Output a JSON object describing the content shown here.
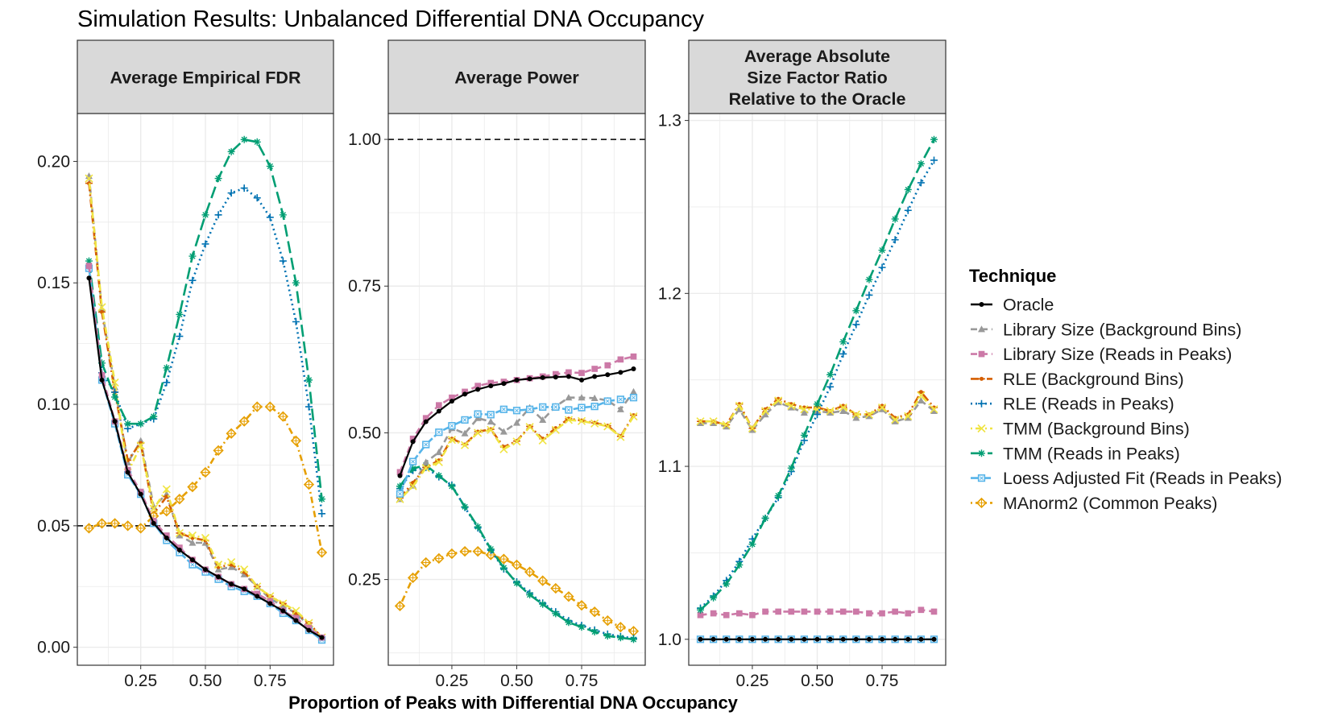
{
  "title": "Simulation Results: Unbalanced Differential DNA Occupancy",
  "legend": {
    "title": "Technique",
    "placement": "right",
    "items": [
      {
        "name": "Oracle",
        "color": "#000000",
        "linetype": "solid",
        "shape": "dot"
      },
      {
        "name": "Library Size (Background Bins)",
        "color": "#999999",
        "linetype": "dashed",
        "shape": "triangle"
      },
      {
        "name": "Library Size (Reads in Peaks)",
        "color": "#CC79A7",
        "linetype": "dashed",
        "shape": "square"
      },
      {
        "name": "RLE (Background Bins)",
        "color": "#D55E00",
        "linetype": "longdash-dot",
        "shape": "arrow"
      },
      {
        "name": "RLE (Reads in Peaks)",
        "color": "#0072B2",
        "linetype": "dotted",
        "shape": "plus"
      },
      {
        "name": "TMM (Background Bins)",
        "color": "#F0E442",
        "linetype": "dotdash",
        "shape": "cross"
      },
      {
        "name": "TMM (Reads in Peaks)",
        "color": "#009E73",
        "linetype": "longdash",
        "shape": "asterisk"
      },
      {
        "name": "Loess Adjusted Fit (Reads in Peaks)",
        "color": "#56B4E9",
        "linetype": "dashed-long",
        "shape": "square-cross"
      },
      {
        "name": "MAnorm2 (Common Peaks)",
        "color": "#E69F00",
        "linetype": "dotdash",
        "shape": "diamond-plus"
      }
    ]
  },
  "xlabel": "Proportion of Peaks with Differential DNA Occupancy",
  "chart_data": [
    {
      "type": "line",
      "title": [
        "Average Empirical FDR"
      ],
      "x": [
        0.05,
        0.1,
        0.15,
        0.2,
        0.25,
        0.3,
        0.35,
        0.4,
        0.45,
        0.5,
        0.55,
        0.6,
        0.65,
        0.7,
        0.75,
        0.8,
        0.85,
        0.9,
        0.95
      ],
      "xlim": [
        0.005,
        0.995
      ],
      "xticks": [
        0.25,
        0.5,
        0.75
      ],
      "xtick_labels": [
        "0.25",
        "0.50",
        "0.75"
      ],
      "ylim": [
        -0.0074,
        0.2197
      ],
      "yticks": [
        0.0,
        0.05,
        0.1,
        0.15,
        0.2
      ],
      "ytick_labels": [
        "0.00",
        "0.05",
        "0.10",
        "0.15",
        "0.20"
      ],
      "grid": true,
      "reference_line": 0.05,
      "series": [
        {
          "name": "Library Size (Background Bins)",
          "values": [
            0.194,
            0.139,
            0.107,
            0.076,
            0.085,
            0.058,
            0.063,
            0.046,
            0.043,
            0.043,
            0.032,
            0.033,
            0.03,
            0.025,
            0.02,
            0.017,
            0.014,
            0.009,
            0.004
          ]
        },
        {
          "name": "RLE (Background Bins)",
          "values": [
            0.191,
            0.138,
            0.105,
            0.077,
            0.084,
            0.055,
            0.062,
            0.047,
            0.045,
            0.044,
            0.033,
            0.034,
            0.031,
            0.025,
            0.021,
            0.018,
            0.014,
            0.01,
            0.004
          ]
        },
        {
          "name": "TMM (Background Bins)",
          "values": [
            0.193,
            0.14,
            0.109,
            0.072,
            0.083,
            0.057,
            0.065,
            0.047,
            0.046,
            0.045,
            0.034,
            0.035,
            0.032,
            0.025,
            0.021,
            0.018,
            0.015,
            0.01,
            0.004
          ]
        },
        {
          "name": "MAnorm2 (Common Peaks)",
          "values": [
            0.049,
            0.051,
            0.051,
            0.05,
            0.049,
            0.054,
            0.056,
            0.061,
            0.066,
            0.072,
            0.081,
            0.088,
            0.093,
            0.099,
            0.099,
            0.095,
            0.085,
            0.067,
            0.039
          ]
        },
        {
          "name": "RLE (Reads in Peaks)",
          "values": [
            0.157,
            0.113,
            0.105,
            0.09,
            0.092,
            0.094,
            0.109,
            0.128,
            0.151,
            0.166,
            0.178,
            0.187,
            0.189,
            0.185,
            0.177,
            0.159,
            0.134,
            0.099,
            0.055
          ]
        },
        {
          "name": "TMM (Reads in Peaks)",
          "values": [
            0.159,
            0.117,
            0.103,
            0.092,
            0.092,
            0.095,
            0.115,
            0.137,
            0.161,
            0.178,
            0.193,
            0.204,
            0.209,
            0.208,
            0.198,
            0.178,
            0.15,
            0.11,
            0.061
          ]
        },
        {
          "name": "Loess Adjusted Fit (Reads in Peaks)",
          "values": [
            0.156,
            0.11,
            0.092,
            0.071,
            0.063,
            0.051,
            0.044,
            0.039,
            0.034,
            0.031,
            0.028,
            0.025,
            0.023,
            0.021,
            0.018,
            0.014,
            0.011,
            0.007,
            0.003
          ]
        },
        {
          "name": "Library Size (Reads in Peaks)",
          "values": [
            0.157,
            0.112,
            0.093,
            0.073,
            0.064,
            0.052,
            0.046,
            0.041,
            0.036,
            0.032,
            0.029,
            0.026,
            0.024,
            0.022,
            0.019,
            0.015,
            0.012,
            0.008,
            0.004
          ]
        },
        {
          "name": "Oracle",
          "values": [
            0.152,
            0.11,
            0.093,
            0.072,
            0.063,
            0.051,
            0.045,
            0.04,
            0.036,
            0.032,
            0.029,
            0.026,
            0.024,
            0.021,
            0.018,
            0.015,
            0.011,
            0.007,
            0.004
          ]
        }
      ]
    },
    {
      "type": "line",
      "title": [
        "Average Power"
      ],
      "x": [
        0.05,
        0.1,
        0.15,
        0.2,
        0.25,
        0.3,
        0.35,
        0.4,
        0.45,
        0.5,
        0.55,
        0.6,
        0.65,
        0.7,
        0.75,
        0.8,
        0.85,
        0.9,
        0.95
      ],
      "xlim": [
        0.005,
        0.995
      ],
      "xticks": [
        0.25,
        0.5,
        0.75
      ],
      "xtick_labels": [
        "0.25",
        "0.50",
        "0.75"
      ],
      "ylim": [
        0.104,
        1.044
      ],
      "yticks": [
        0.25,
        0.5,
        0.75,
        1.0
      ],
      "ytick_labels": [
        "0.25",
        "0.50",
        "0.75",
        "1.00"
      ],
      "grid": true,
      "reference_line": 1.0,
      "series": [
        {
          "name": "MAnorm2 (Common Peaks)",
          "values": [
            0.205,
            0.253,
            0.279,
            0.286,
            0.294,
            0.298,
            0.298,
            0.292,
            0.285,
            0.275,
            0.263,
            0.248,
            0.235,
            0.221,
            0.206,
            0.195,
            0.18,
            0.169,
            0.162
          ]
        },
        {
          "name": "RLE (Reads in Peaks)",
          "values": [
            0.405,
            0.436,
            0.441,
            0.425,
            0.411,
            0.373,
            0.338,
            0.3,
            0.268,
            0.246,
            0.227,
            0.21,
            0.195,
            0.18,
            0.172,
            0.164,
            0.157,
            0.153,
            0.15
          ]
        },
        {
          "name": "TMM (Reads in Peaks)",
          "values": [
            0.409,
            0.439,
            0.445,
            0.427,
            0.409,
            0.374,
            0.34,
            0.302,
            0.27,
            0.244,
            0.224,
            0.208,
            0.192,
            0.177,
            0.169,
            0.161,
            0.154,
            0.151,
            0.148
          ]
        },
        {
          "name": "Library Size (Background Bins)",
          "values": [
            0.387,
            0.41,
            0.45,
            0.467,
            0.508,
            0.499,
            0.525,
            0.519,
            0.502,
            0.517,
            0.543,
            0.522,
            0.545,
            0.56,
            0.56,
            0.559,
            0.555,
            0.54,
            0.57
          ]
        },
        {
          "name": "RLE (Background Bins)",
          "values": [
            0.389,
            0.415,
            0.441,
            0.453,
            0.49,
            0.48,
            0.502,
            0.506,
            0.476,
            0.486,
            0.511,
            0.49,
            0.508,
            0.524,
            0.521,
            0.517,
            0.512,
            0.494,
            0.53
          ]
        },
        {
          "name": "TMM (Background Bins)",
          "values": [
            0.387,
            0.409,
            0.44,
            0.45,
            0.488,
            0.479,
            0.5,
            0.505,
            0.472,
            0.485,
            0.51,
            0.487,
            0.505,
            0.522,
            0.52,
            0.516,
            0.511,
            0.493,
            0.528
          ]
        },
        {
          "name": "Loess Adjusted Fit (Reads in Peaks)",
          "values": [
            0.396,
            0.451,
            0.48,
            0.501,
            0.512,
            0.522,
            0.532,
            0.531,
            0.54,
            0.538,
            0.54,
            0.544,
            0.544,
            0.539,
            0.543,
            0.545,
            0.554,
            0.557,
            0.56
          ]
        },
        {
          "name": "Library Size (Reads in Peaks)",
          "values": [
            0.433,
            0.49,
            0.525,
            0.547,
            0.56,
            0.57,
            0.58,
            0.585,
            0.587,
            0.59,
            0.593,
            0.596,
            0.6,
            0.603,
            0.602,
            0.609,
            0.615,
            0.625,
            0.63
          ]
        },
        {
          "name": "Oracle",
          "values": [
            0.427,
            0.485,
            0.519,
            0.537,
            0.554,
            0.566,
            0.574,
            0.58,
            0.584,
            0.59,
            0.592,
            0.594,
            0.595,
            0.596,
            0.59,
            0.596,
            0.599,
            0.603,
            0.609
          ]
        }
      ]
    },
    {
      "type": "line",
      "title": [
        "Average Absolute",
        "Size Factor Ratio",
        "Relative to the Oracle"
      ],
      "x": [
        0.05,
        0.1,
        0.15,
        0.2,
        0.25,
        0.3,
        0.35,
        0.4,
        0.45,
        0.5,
        0.55,
        0.6,
        0.65,
        0.7,
        0.75,
        0.8,
        0.85,
        0.9,
        0.95
      ],
      "xlim": [
        0.005,
        0.995
      ],
      "xticks": [
        0.25,
        0.5,
        0.75
      ],
      "xtick_labels": [
        "0.25",
        "0.50",
        "0.75"
      ],
      "ylim": [
        0.985,
        1.304
      ],
      "yticks": [
        1.0,
        1.1,
        1.2,
        1.3
      ],
      "ytick_labels": [
        "1.0",
        "1.1",
        "1.2",
        "1.3"
      ],
      "grid": true,
      "reference_line": null,
      "series": [
        {
          "name": "Loess Adjusted Fit (Reads in Peaks)",
          "values": [
            1.0,
            1.0,
            1.0,
            1.0,
            1.0,
            1.0,
            1.0,
            1.0,
            1.0,
            1.0,
            1.0,
            1.0,
            1.0,
            1.0,
            1.0,
            1.0,
            1.0,
            1.0,
            1.0
          ]
        },
        {
          "name": "Library Size (Reads in Peaks)",
          "values": [
            1.014,
            1.015,
            1.014,
            1.015,
            1.014,
            1.016,
            1.016,
            1.016,
            1.016,
            1.016,
            1.016,
            1.016,
            1.016,
            1.015,
            1.015,
            1.016,
            1.015,
            1.017,
            1.016
          ]
        },
        {
          "name": "Library Size (Background Bins)",
          "values": [
            1.125,
            1.125,
            1.123,
            1.133,
            1.121,
            1.13,
            1.137,
            1.134,
            1.131,
            1.132,
            1.131,
            1.132,
            1.128,
            1.129,
            1.133,
            1.126,
            1.128,
            1.138,
            1.132
          ]
        },
        {
          "name": "RLE (Background Bins)",
          "values": [
            1.126,
            1.126,
            1.124,
            1.136,
            1.122,
            1.133,
            1.139,
            1.136,
            1.134,
            1.134,
            1.132,
            1.135,
            1.13,
            1.13,
            1.135,
            1.128,
            1.13,
            1.143,
            1.134
          ]
        },
        {
          "name": "TMM (Background Bins)",
          "values": [
            1.126,
            1.126,
            1.124,
            1.135,
            1.122,
            1.132,
            1.138,
            1.135,
            1.133,
            1.133,
            1.132,
            1.134,
            1.13,
            1.13,
            1.134,
            1.127,
            1.129,
            1.141,
            1.133
          ]
        },
        {
          "name": "RLE (Reads in Peaks)",
          "values": [
            1.018,
            1.025,
            1.034,
            1.045,
            1.058,
            1.07,
            1.082,
            1.097,
            1.115,
            1.13,
            1.146,
            1.165,
            1.182,
            1.199,
            1.215,
            1.231,
            1.248,
            1.264,
            1.277
          ]
        },
        {
          "name": "TMM (Reads in Peaks)",
          "values": [
            1.017,
            1.024,
            1.032,
            1.043,
            1.055,
            1.07,
            1.083,
            1.099,
            1.118,
            1.136,
            1.153,
            1.172,
            1.19,
            1.208,
            1.225,
            1.243,
            1.26,
            1.275,
            1.289
          ]
        },
        {
          "name": "Oracle",
          "values": [
            1.0,
            1.0,
            1.0,
            1.0,
            1.0,
            1.0,
            1.0,
            1.0,
            1.0,
            1.0,
            1.0,
            1.0,
            1.0,
            1.0,
            1.0,
            1.0,
            1.0,
            1.0,
            1.0
          ]
        }
      ]
    }
  ]
}
